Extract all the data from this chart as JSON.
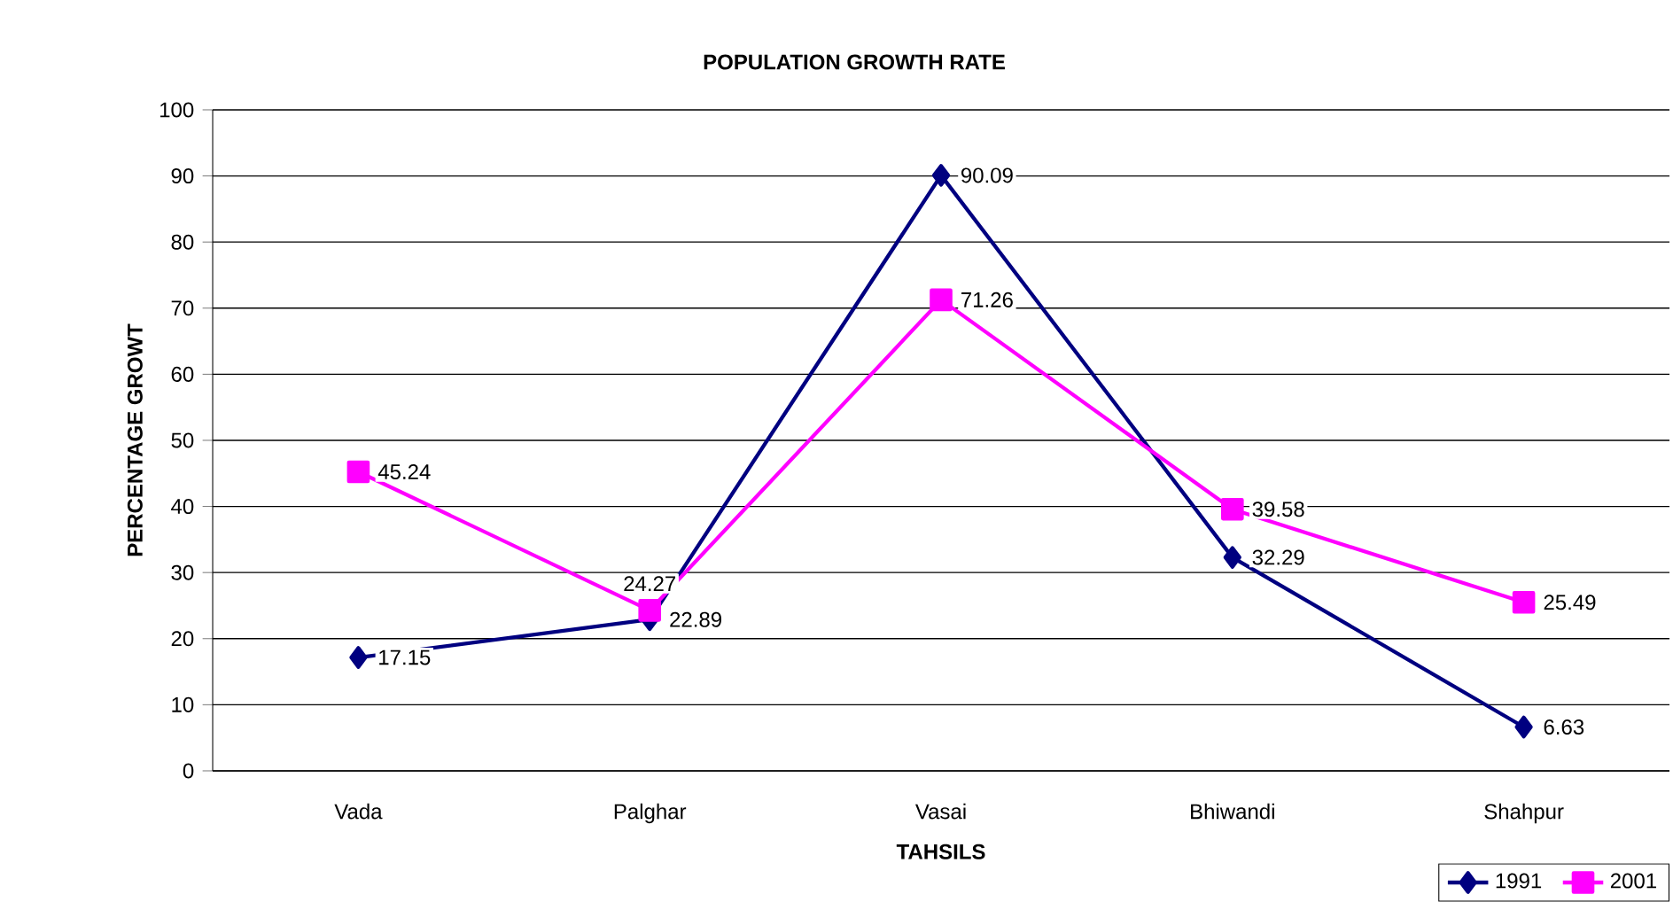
{
  "chart_data": {
    "type": "line",
    "title": "POPULATION GROWTH RATE",
    "xlabel": "TAHSILS",
    "ylabel": "PERCENTAGE GROWT",
    "categories": [
      "Vada",
      "Palghar",
      "Vasai",
      "Bhiwandi",
      "Shahpur"
    ],
    "series": [
      {
        "name": "1991",
        "color": "#000080",
        "marker": "diamond",
        "values": [
          17.15,
          22.89,
          90.09,
          32.29,
          6.63
        ]
      },
      {
        "name": "2001",
        "color": "#ff00ff",
        "marker": "square",
        "values": [
          45.24,
          24.27,
          71.26,
          39.58,
          25.49
        ]
      }
    ],
    "ylim": [
      0,
      100
    ],
    "yticks": [
      0,
      10,
      20,
      30,
      40,
      50,
      60,
      70,
      80,
      90,
      100
    ],
    "grid": "y",
    "legend": "bottom right",
    "data_labels": true,
    "line_style": "solid"
  }
}
